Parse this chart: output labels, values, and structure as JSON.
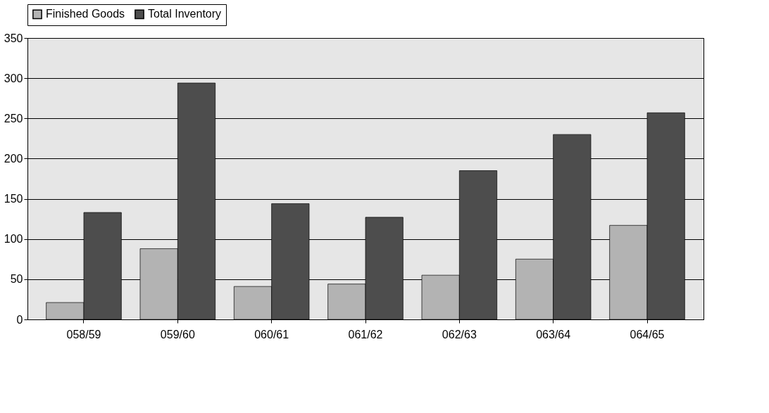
{
  "chart_data": {
    "type": "bar",
    "categories": [
      "058/59",
      "059/60",
      "060/61",
      "061/62",
      "062/63",
      "063/64",
      "064/65"
    ],
    "series": [
      {
        "name": "Finished Goods",
        "color": "#b3b3b3",
        "values": [
          21,
          88,
          41,
          44,
          55,
          75,
          117
        ]
      },
      {
        "name": "Total Inventory",
        "color": "#4d4d4d",
        "values": [
          133,
          294,
          144,
          127,
          185,
          230,
          257
        ]
      }
    ],
    "ylim": [
      0,
      350
    ],
    "yticks": [
      0,
      50,
      100,
      150,
      200,
      250,
      300,
      350
    ],
    "grid": "y",
    "legend": "top"
  }
}
